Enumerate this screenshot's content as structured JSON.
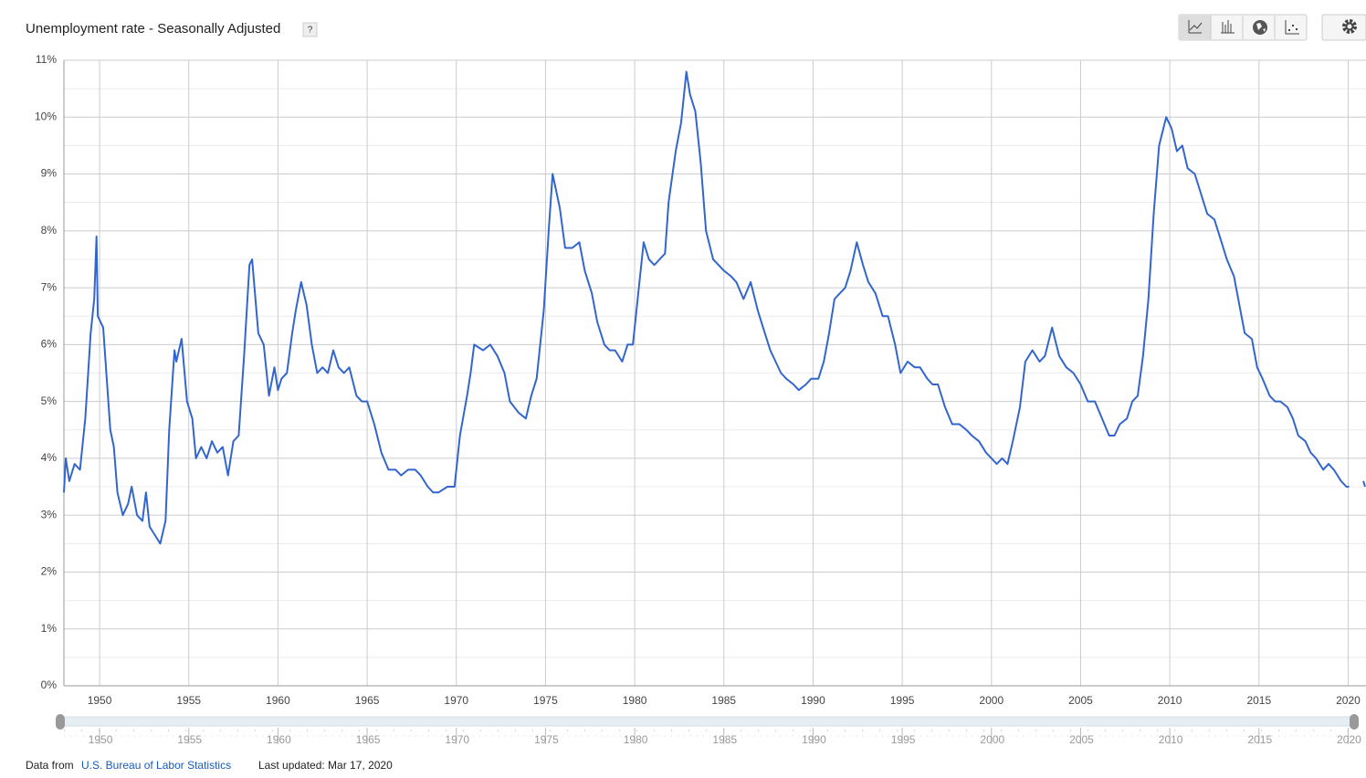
{
  "chart_data": {
    "type": "line",
    "title": "Unemployment rate - Seasonally Adjusted",
    "help": "?",
    "source_prefix": "Data from",
    "source": "U.S. Bureau of Labor Statistics",
    "updated": "Last updated: Mar 17, 2020",
    "xlim": [
      1948,
      2021
    ],
    "xticks": [
      1950,
      1955,
      1960,
      1965,
      1970,
      1975,
      1980,
      1985,
      1990,
      1995,
      2000,
      2005,
      2010,
      2015,
      2020
    ],
    "ylim": [
      0,
      11
    ],
    "yticks": [
      {
        "value": 0,
        "label": "0%"
      },
      {
        "value": 1,
        "label": "1%"
      },
      {
        "value": 2,
        "label": "2%"
      },
      {
        "value": 3,
        "label": "3%"
      },
      {
        "value": 4,
        "label": "4%"
      },
      {
        "value": 5,
        "label": "5%"
      },
      {
        "value": 6,
        "label": "6%"
      },
      {
        "value": 7,
        "label": "7%"
      },
      {
        "value": 8,
        "label": "8%"
      },
      {
        "value": 9,
        "label": "9%"
      },
      {
        "value": 10,
        "label": "10%"
      },
      {
        "value": 11,
        "label": "11%"
      }
    ],
    "y_minor_ticks": [
      0.5,
      1.5,
      2.5,
      3.5,
      4.5,
      5.5,
      6.5,
      7.5,
      8.5,
      9.5,
      10.5
    ],
    "grid": true,
    "series": [
      {
        "color": "#3366cc",
        "x": [
          1948.0,
          1948.1,
          1948.3,
          1948.6,
          1948.9,
          1949.2,
          1949.5,
          1949.7,
          1949.83,
          1949.9,
          1950.2,
          1950.4,
          1950.6,
          1950.8,
          1951.0,
          1951.3,
          1951.6,
          1951.8,
          1952.1,
          1952.4,
          1952.6,
          1952.8,
          1953.2,
          1953.4,
          1953.7,
          1953.9,
          1954.2,
          1954.3,
          1954.6,
          1954.9,
          1955.2,
          1955.4,
          1955.7,
          1956.0,
          1956.3,
          1956.6,
          1956.9,
          1957.2,
          1957.5,
          1957.8,
          1958.1,
          1958.4,
          1958.55,
          1958.9,
          1959.2,
          1959.5,
          1959.8,
          1960.0,
          1960.2,
          1960.5,
          1960.8,
          1961.0,
          1961.3,
          1961.6,
          1961.9,
          1962.2,
          1962.5,
          1962.8,
          1963.1,
          1963.4,
          1963.7,
          1964.0,
          1964.4,
          1964.7,
          1965.0,
          1965.4,
          1965.8,
          1966.2,
          1966.6,
          1966.9,
          1967.3,
          1967.7,
          1968.0,
          1968.4,
          1968.7,
          1969.0,
          1969.5,
          1969.9,
          1970.2,
          1970.6,
          1970.8,
          1971.0,
          1971.5,
          1971.9,
          1972.3,
          1972.7,
          1973.0,
          1973.5,
          1973.9,
          1974.2,
          1974.5,
          1974.9,
          1975.2,
          1975.4,
          1975.8,
          1976.1,
          1976.5,
          1976.9,
          1977.2,
          1977.6,
          1977.9,
          1978.3,
          1978.6,
          1978.9,
          1979.3,
          1979.6,
          1979.9,
          1980.2,
          1980.5,
          1980.8,
          1981.1,
          1981.4,
          1981.7,
          1981.9,
          1982.3,
          1982.6,
          1982.9,
          1983.1,
          1983.4,
          1983.7,
          1984.0,
          1984.4,
          1984.7,
          1985.0,
          1985.4,
          1985.7,
          1986.1,
          1986.5,
          1986.9,
          1987.2,
          1987.6,
          1987.9,
          1988.2,
          1988.5,
          1988.9,
          1989.2,
          1989.6,
          1989.9,
          1990.3,
          1990.6,
          1990.9,
          1991.2,
          1991.5,
          1991.8,
          1992.1,
          1992.45,
          1992.8,
          1993.1,
          1993.5,
          1993.9,
          1994.2,
          1994.6,
          1994.9,
          1995.3,
          1995.7,
          1996.0,
          1996.4,
          1996.7,
          1997.0,
          1997.4,
          1997.8,
          1998.2,
          1998.6,
          1998.9,
          1999.3,
          1999.7,
          2000.0,
          2000.3,
          2000.6,
          2000.9,
          2001.2,
          2001.6,
          2001.9,
          2002.3,
          2002.7,
          2003.0,
          2003.4,
          2003.8,
          2004.2,
          2004.6,
          2005.0,
          2005.4,
          2005.8,
          2006.2,
          2006.6,
          2006.9,
          2007.2,
          2007.6,
          2007.9,
          2008.2,
          2008.5,
          2008.8,
          2009.1,
          2009.4,
          2009.8,
          2010.1,
          2010.4,
          2010.7,
          2011.0,
          2011.4,
          2011.8,
          2012.1,
          2012.5,
          2012.9,
          2013.2,
          2013.6,
          2013.9,
          2014.2,
          2014.6,
          2014.9,
          2015.2,
          2015.6,
          2015.9,
          2016.2,
          2016.6,
          2016.9,
          2017.2,
          2017.6,
          2017.9,
          2018.2,
          2018.6,
          2018.9,
          2019.2,
          2019.6,
          2019.9,
          2020.05,
          2020.5,
          2020.85,
          2020.95
        ],
        "values": [
          3.4,
          4.0,
          3.6,
          3.9,
          3.8,
          4.7,
          6.2,
          6.8,
          7.9,
          6.5,
          6.3,
          5.4,
          4.5,
          4.2,
          3.4,
          3.0,
          3.2,
          3.5,
          3.0,
          2.9,
          3.4,
          2.8,
          2.6,
          2.5,
          2.9,
          4.5,
          5.9,
          5.7,
          6.1,
          5.0,
          4.7,
          4.0,
          4.2,
          4.0,
          4.3,
          4.1,
          4.2,
          3.7,
          4.3,
          4.4,
          5.8,
          7.4,
          7.5,
          6.2,
          6.0,
          5.1,
          5.6,
          5.2,
          5.4,
          5.5,
          6.2,
          6.6,
          7.1,
          6.7,
          6.0,
          5.5,
          5.6,
          5.5,
          5.9,
          5.6,
          5.5,
          5.6,
          5.1,
          5.0,
          5.0,
          4.6,
          4.1,
          3.8,
          3.8,
          3.7,
          3.8,
          3.8,
          3.7,
          3.5,
          3.4,
          3.4,
          3.5,
          3.5,
          4.4,
          5.1,
          5.5,
          6.0,
          5.9,
          6.0,
          5.8,
          5.5,
          5.0,
          4.8,
          4.7,
          5.1,
          5.4,
          6.6,
          8.1,
          9.0,
          8.4,
          7.7,
          7.7,
          7.8,
          7.3,
          6.9,
          6.4,
          6.0,
          5.9,
          5.9,
          5.7,
          6.0,
          6.0,
          6.9,
          7.8,
          7.5,
          7.4,
          7.5,
          7.6,
          8.5,
          9.4,
          9.9,
          10.8,
          10.4,
          10.1,
          9.2,
          8.0,
          7.5,
          7.4,
          7.3,
          7.2,
          7.1,
          6.8,
          7.1,
          6.6,
          6.3,
          5.9,
          5.7,
          5.5,
          5.4,
          5.3,
          5.2,
          5.3,
          5.4,
          5.4,
          5.7,
          6.2,
          6.8,
          6.9,
          7.0,
          7.3,
          7.8,
          7.4,
          7.1,
          6.9,
          6.5,
          6.5,
          6.0,
          5.5,
          5.7,
          5.6,
          5.6,
          5.4,
          5.3,
          5.3,
          4.9,
          4.6,
          4.6,
          4.5,
          4.4,
          4.3,
          4.1,
          4.0,
          3.9,
          4.0,
          3.9,
          4.3,
          4.9,
          5.7,
          5.9,
          5.7,
          5.8,
          6.3,
          5.8,
          5.6,
          5.5,
          5.3,
          5.0,
          5.0,
          4.7,
          4.4,
          4.4,
          4.6,
          4.7,
          5.0,
          5.1,
          5.8,
          6.8,
          8.3,
          9.5,
          10.0,
          9.8,
          9.4,
          9.5,
          9.1,
          9.0,
          8.6,
          8.3,
          8.2,
          7.8,
          7.5,
          7.2,
          6.7,
          6.2,
          6.1,
          5.6,
          5.4,
          5.1,
          5.0,
          5.0,
          4.9,
          4.7,
          4.4,
          4.3,
          4.1,
          4.0,
          3.8,
          3.9,
          3.8,
          3.6,
          3.5,
          3.5,
          null,
          3.6,
          3.5
        ]
      }
    ]
  }
}
